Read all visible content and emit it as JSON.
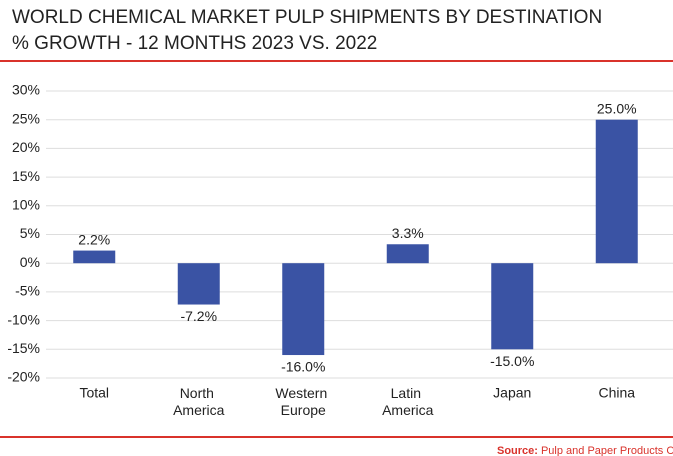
{
  "chart_data": {
    "type": "bar",
    "title": [
      "WORLD CHEMICAL MARKET PULP SHIPMENTS BY DESTINATION",
      "% GROWTH - 12 MONTHS 2023 VS. 2022"
    ],
    "categories": [
      "Total",
      "North America",
      "Western Europe",
      "Latin America",
      "Japan",
      "China"
    ],
    "values": [
      2.2,
      -7.2,
      -16.0,
      3.3,
      -15.0,
      25.0
    ],
    "value_labels": [
      "2.2%",
      "-7.2%",
      "-16.0%",
      "3.3%",
      "-15.0%",
      "25.0%"
    ],
    "color": "#3a53a4",
    "ylim": [
      -20,
      30
    ],
    "yticks": [
      {
        "value": -20,
        "label": "-20%"
      },
      {
        "value": -15,
        "label": "-15%"
      },
      {
        "value": -10,
        "label": "-10%"
      },
      {
        "value": -5,
        "label": "-5%"
      },
      {
        "value": 0,
        "label": "0%"
      },
      {
        "value": 5,
        "label": "5%"
      },
      {
        "value": 10,
        "label": "10%"
      },
      {
        "value": 15,
        "label": "15%"
      },
      {
        "value": 20,
        "label": "20%"
      },
      {
        "value": 25,
        "label": "25%"
      },
      {
        "value": 30,
        "label": "30%"
      }
    ],
    "grid": true,
    "source_label": "Source:",
    "source": "Pulp and Paper Products Co"
  }
}
